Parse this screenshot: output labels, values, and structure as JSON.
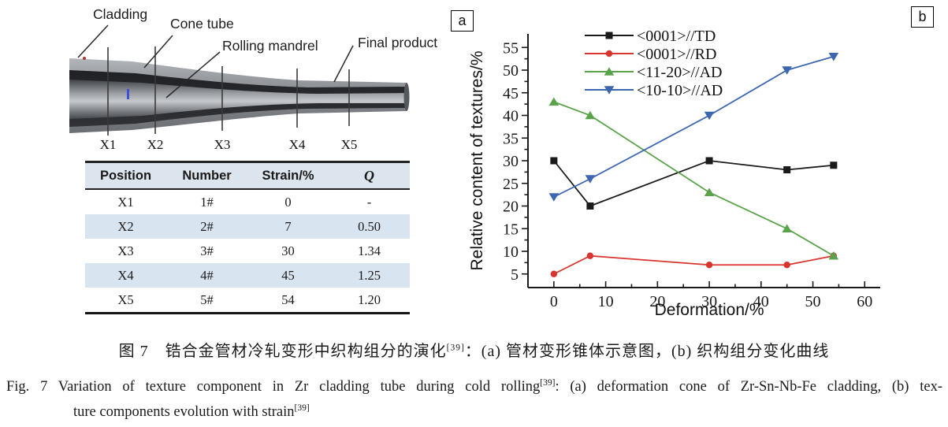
{
  "figure": {
    "panel_a_label": "a",
    "panel_b_label": "b"
  },
  "diagram": {
    "labels": {
      "cladding": "Cladding",
      "cone_tube": "Cone tube",
      "rolling_mandrel": "Rolling mandrel",
      "final_product": "Final product"
    },
    "positions": [
      "X1",
      "X2",
      "X3",
      "X4",
      "X5"
    ]
  },
  "table": {
    "headers": [
      "Position",
      "Number",
      "Strain/%",
      "Q"
    ],
    "rows": [
      [
        "X1",
        "1#",
        "0",
        "-"
      ],
      [
        "X2",
        "2#",
        "7",
        "0.50"
      ],
      [
        "X3",
        "3#",
        "30",
        "1.34"
      ],
      [
        "X4",
        "4#",
        "45",
        "1.25"
      ],
      [
        "X5",
        "5#",
        "54",
        "1.20"
      ]
    ],
    "header_bg": "#dce4ee",
    "stripe_color": "#d9e4f1"
  },
  "chart_data": {
    "type": "line",
    "title": "",
    "xlabel": "Deformation/%",
    "ylabel": "Relative content of textures/%",
    "x": [
      0,
      7,
      30,
      45,
      54
    ],
    "series": [
      {
        "name": "<0001>//TD",
        "color": "#1a1a1a",
        "marker": "square",
        "values": [
          30,
          20,
          30,
          28,
          29
        ]
      },
      {
        "name": "<0001>//RD",
        "color": "#d9352e",
        "marker": "circle",
        "values": [
          5,
          9,
          7,
          7,
          9
        ]
      },
      {
        "name": "<11-20>//AD",
        "color": "#5ba34b",
        "marker": "triangle-up",
        "values": [
          43,
          40,
          23,
          15,
          9
        ]
      },
      {
        "name": "<10-10>//AD",
        "color": "#3c66b0",
        "marker": "triangle-down",
        "values": [
          22,
          26,
          40,
          50,
          53
        ]
      }
    ],
    "xticks": [
      0,
      10,
      20,
      30,
      40,
      50,
      60
    ],
    "yticks": [
      5,
      10,
      15,
      20,
      25,
      30,
      35,
      40,
      45,
      50,
      55
    ],
    "xlim": [
      -5,
      63
    ],
    "ylim": [
      2,
      58
    ],
    "grid": false,
    "legend_position": "top-center-inside"
  },
  "caption": {
    "zh": "图 7　锆合金管材冷轧变形中织构组分的演化",
    "zh_ref": "[39]",
    "zh_rest": "：(a) 管材变形锥体示意图，(b) 织构组分变化曲线",
    "en_line1_pre": "Fig. 7   Variation of texture component in Zr cladding tube during cold rolling",
    "en_ref1": "[39]",
    "en_line1_post": ": (a) deformation cone of Zr-Sn-Nb-Fe cladding, (b) tex-",
    "en_line2_pre": "ture components evolution with strain",
    "en_ref2": "[39]"
  }
}
